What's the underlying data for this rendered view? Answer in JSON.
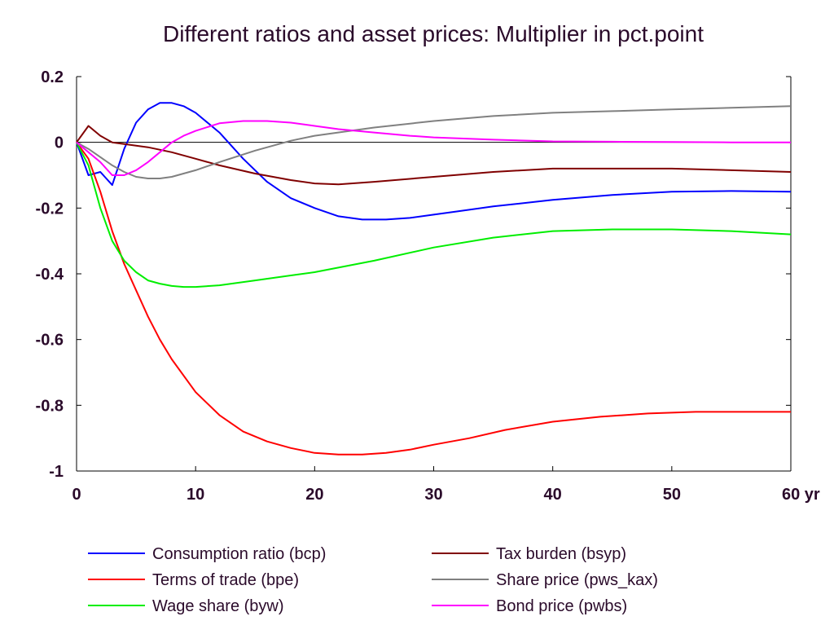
{
  "chart_data": {
    "type": "line",
    "title": "Different ratios and asset prices: Multiplier in pct.point",
    "xlabel": "",
    "ylabel": "",
    "xlim": [
      0,
      60
    ],
    "ylim": [
      -1,
      0.2
    ],
    "x_ticks": [
      0,
      10,
      20,
      30,
      40,
      50,
      60
    ],
    "x_tick_labels": [
      "0",
      "10",
      "20",
      "30",
      "40",
      "50",
      "60 yr"
    ],
    "y_ticks": [
      0.2,
      0,
      -0.2,
      -0.4,
      -0.6,
      -0.8,
      -1
    ],
    "y_tick_labels": [
      "0.2",
      "0",
      "-0.2",
      "-0.4",
      "-0.6",
      "-0.8",
      "-1"
    ],
    "zero_line": true,
    "grid": false,
    "legend_position": "bottom",
    "series": [
      {
        "name": "Consumption ratio (bcp)",
        "color": "#0000ff",
        "x": [
          0,
          1,
          1.5,
          2,
          3,
          4,
          5,
          6,
          7,
          8,
          9,
          10,
          12,
          14,
          16,
          18,
          20,
          22,
          24,
          26,
          28,
          30,
          32,
          35,
          40,
          45,
          50,
          55,
          60
        ],
        "y": [
          0,
          -0.1,
          -0.095,
          -0.09,
          -0.13,
          -0.02,
          0.06,
          0.1,
          0.12,
          0.12,
          0.11,
          0.09,
          0.03,
          -0.05,
          -0.12,
          -0.17,
          -0.2,
          -0.225,
          -0.235,
          -0.235,
          -0.23,
          -0.22,
          -0.21,
          -0.195,
          -0.175,
          -0.16,
          -0.15,
          -0.148,
          -0.15
        ]
      },
      {
        "name": "Terms of trade (bpe)",
        "color": "#ff0000",
        "x": [
          0,
          1,
          2,
          3,
          4,
          5,
          6,
          7,
          8,
          10,
          12,
          14,
          16,
          18,
          20,
          22,
          24,
          26,
          28,
          30,
          33,
          36,
          40,
          44,
          48,
          52,
          56,
          60
        ],
        "y": [
          0,
          -0.05,
          -0.15,
          -0.27,
          -0.37,
          -0.45,
          -0.53,
          -0.6,
          -0.66,
          -0.76,
          -0.83,
          -0.88,
          -0.91,
          -0.93,
          -0.945,
          -0.95,
          -0.95,
          -0.945,
          -0.935,
          -0.92,
          -0.9,
          -0.875,
          -0.85,
          -0.835,
          -0.825,
          -0.82,
          -0.82,
          -0.82
        ]
      },
      {
        "name": "Wage share (byw)",
        "color": "#00ee00",
        "x": [
          0,
          1,
          2,
          3,
          4,
          5,
          6,
          7,
          8,
          9,
          10,
          12,
          15,
          18,
          20,
          25,
          30,
          35,
          40,
          45,
          50,
          55,
          60
        ],
        "y": [
          0,
          -0.07,
          -0.2,
          -0.3,
          -0.36,
          -0.395,
          -0.42,
          -0.43,
          -0.437,
          -0.44,
          -0.44,
          -0.435,
          -0.42,
          -0.405,
          -0.395,
          -0.36,
          -0.32,
          -0.29,
          -0.27,
          -0.265,
          -0.265,
          -0.27,
          -0.28
        ]
      },
      {
        "name": "Tax burden (bsyp)",
        "color": "#800000",
        "x": [
          0,
          1,
          2,
          3,
          4,
          5,
          6,
          8,
          10,
          12,
          15,
          18,
          20,
          22,
          25,
          30,
          35,
          40,
          45,
          50,
          55,
          60
        ],
        "y": [
          0,
          0.05,
          0.02,
          0,
          -0.005,
          -0.01,
          -0.015,
          -0.03,
          -0.05,
          -0.07,
          -0.095,
          -0.115,
          -0.125,
          -0.128,
          -0.12,
          -0.105,
          -0.09,
          -0.08,
          -0.08,
          -0.08,
          -0.085,
          -0.09
        ]
      },
      {
        "name": "Share price (pws_kax)",
        "color": "#808080",
        "x": [
          0,
          1,
          2,
          3,
          4,
          5,
          6,
          7,
          8,
          10,
          12,
          15,
          18,
          20,
          25,
          30,
          35,
          40,
          45,
          50,
          55,
          60
        ],
        "y": [
          0,
          -0.02,
          -0.045,
          -0.07,
          -0.09,
          -0.105,
          -0.11,
          -0.11,
          -0.105,
          -0.085,
          -0.06,
          -0.025,
          0.005,
          0.02,
          0.045,
          0.065,
          0.08,
          0.09,
          0.095,
          0.1,
          0.105,
          0.11
        ]
      },
      {
        "name": "Bond price (pwbs)",
        "color": "#ff00ff",
        "x": [
          0,
          1,
          2,
          3,
          4,
          5,
          6,
          7,
          8,
          9,
          10,
          12,
          14,
          16,
          18,
          20,
          22,
          25,
          28,
          30,
          35,
          40,
          45,
          50,
          55,
          60
        ],
        "y": [
          0,
          -0.03,
          -0.06,
          -0.1,
          -0.1,
          -0.085,
          -0.06,
          -0.03,
          0,
          0.02,
          0.035,
          0.058,
          0.065,
          0.065,
          0.06,
          0.05,
          0.04,
          0.03,
          0.02,
          0.015,
          0.008,
          0.003,
          0.002,
          0.001,
          0,
          0
        ]
      }
    ]
  }
}
